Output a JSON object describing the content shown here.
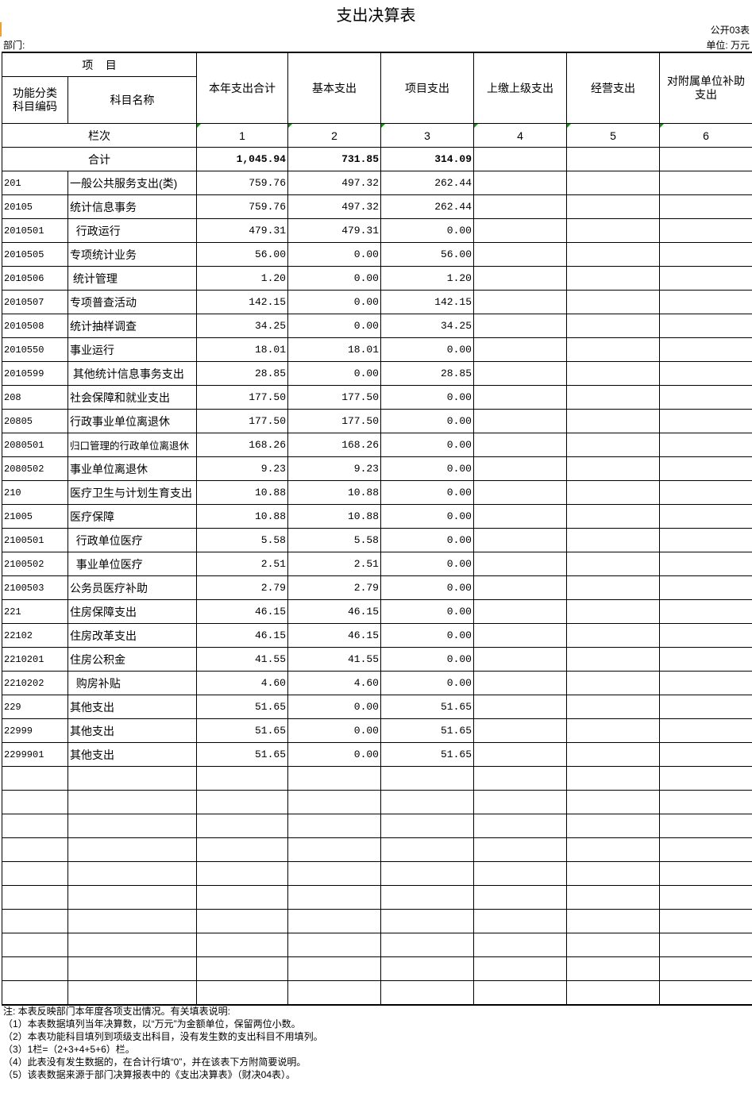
{
  "title": "支出决算表",
  "form_no": "公开03表",
  "dept_label": "部门:",
  "unit_label": "单位: 万元",
  "header": {
    "item": "项    目",
    "code": "功能分类\n科目编码",
    "name": "科目名称",
    "columns": [
      "本年支出合计",
      "基本支出",
      "项目支出",
      "上缴上级支出",
      "经营支出",
      "对附属单位补助\n支出"
    ],
    "row_index_label": "栏次",
    "row_index": [
      "1",
      "2",
      "3",
      "4",
      "5",
      "6"
    ]
  },
  "total": {
    "label": "合计",
    "values": [
      "1,045.94",
      "731.85",
      "314.09",
      "",
      "",
      ""
    ]
  },
  "rows": [
    {
      "code": "201",
      "name": "一般公共服务支出(类)",
      "values": [
        "759.76",
        "497.32",
        "262.44"
      ]
    },
    {
      "code": "20105",
      "name": "统计信息事务",
      "values": [
        "759.76",
        "497.32",
        "262.44"
      ]
    },
    {
      "code": "2010501",
      "name": "  行政运行",
      "values": [
        "479.31",
        "479.31",
        "0.00"
      ]
    },
    {
      "code": "2010505",
      "name": "专项统计业务",
      "values": [
        "56.00",
        "0.00",
        "56.00"
      ]
    },
    {
      "code": "2010506",
      "name": " 统计管理",
      "values": [
        "1.20",
        "0.00",
        "1.20"
      ]
    },
    {
      "code": "2010507",
      "name": "专项普查活动",
      "values": [
        "142.15",
        "0.00",
        "142.15"
      ]
    },
    {
      "code": "2010508",
      "name": "统计抽样调查",
      "values": [
        "34.25",
        "0.00",
        "34.25"
      ]
    },
    {
      "code": "2010550",
      "name": "事业运行",
      "values": [
        "18.01",
        "18.01",
        "0.00"
      ]
    },
    {
      "code": "2010599",
      "name": " 其他统计信息事务支出",
      "values": [
        "28.85",
        "0.00",
        "28.85"
      ]
    },
    {
      "code": "208",
      "name": "社会保障和就业支出",
      "values": [
        "177.50",
        "177.50",
        "0.00"
      ]
    },
    {
      "code": "20805",
      "name": "行政事业单位离退休",
      "values": [
        "177.50",
        "177.50",
        "0.00"
      ]
    },
    {
      "code": "2080501",
      "name": "归口管理的行政单位离退休",
      "values": [
        "168.26",
        "168.26",
        "0.00"
      ]
    },
    {
      "code": "2080502",
      "name": "事业单位离退休",
      "values": [
        "9.23",
        "9.23",
        "0.00"
      ]
    },
    {
      "code": "210",
      "name": "医疗卫生与计划生育支出",
      "values": [
        "10.88",
        "10.88",
        "0.00"
      ]
    },
    {
      "code": "21005",
      "name": "医疗保障",
      "values": [
        "10.88",
        "10.88",
        "0.00"
      ]
    },
    {
      "code": "2100501",
      "name": "  行政单位医疗",
      "values": [
        "5.58",
        "5.58",
        "0.00"
      ]
    },
    {
      "code": "2100502",
      "name": "  事业单位医疗",
      "values": [
        "2.51",
        "2.51",
        "0.00"
      ]
    },
    {
      "code": "2100503",
      "name": "公务员医疗补助",
      "values": [
        "2.79",
        "2.79",
        "0.00"
      ]
    },
    {
      "code": "221",
      "name": "住房保障支出",
      "values": [
        "46.15",
        "46.15",
        "0.00"
      ]
    },
    {
      "code": "22102",
      "name": "住房改革支出",
      "values": [
        "46.15",
        "46.15",
        "0.00"
      ]
    },
    {
      "code": "2210201",
      "name": "住房公积金",
      "values": [
        "41.55",
        "41.55",
        "0.00"
      ]
    },
    {
      "code": "2210202",
      "name": "  购房补贴",
      "values": [
        "4.60",
        "4.60",
        "0.00"
      ]
    },
    {
      "code": "229",
      "name": "其他支出",
      "values": [
        "51.65",
        "0.00",
        "51.65"
      ]
    },
    {
      "code": "22999",
      "name": "其他支出",
      "values": [
        "51.65",
        "0.00",
        "51.65"
      ]
    },
    {
      "code": "2299901",
      "name": "其他支出",
      "values": [
        "51.65",
        "0.00",
        "51.65"
      ]
    }
  ],
  "notes": [
    "注: 本表反映部门本年度各项支出情况。有关填表说明:",
    "（1）本表数据填列当年决算数，以“万元”为金额单位，保留两位小数。",
    "（2）本表功能科目填列到项级支出科目，没有发生数的支出科目不用填列。",
    "（3）1栏=（2+3+4+5+6）栏。",
    "（4）此表没有发生数据的，在合计行填“0”，并在该表下方附简要说明。",
    "（5）该表数据来源于部门决算报表中的《支出决算表》（财决04表）。"
  ]
}
